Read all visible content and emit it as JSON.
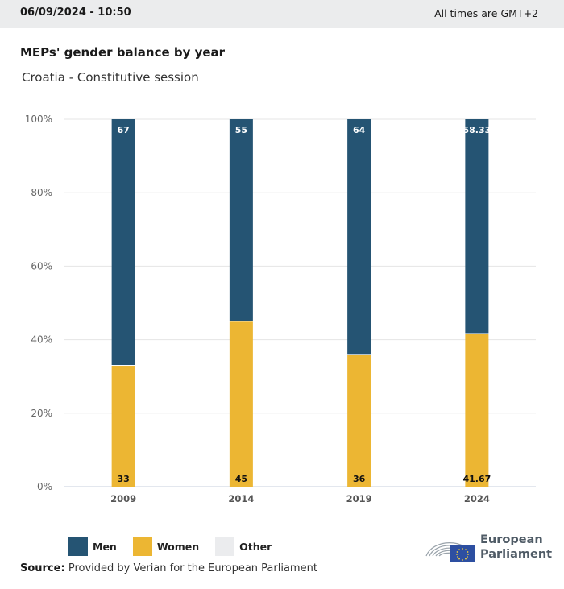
{
  "header": {
    "datetime": "06/09/2024 - 10:50",
    "timezone_note": "All times are GMT+2"
  },
  "title": "MEPs' gender balance by year",
  "subtitle": "Croatia - Constitutive session",
  "colors": {
    "men": "#255473",
    "women": "#ecb633",
    "other": "#ebecee",
    "grid": "#e4e4e4",
    "axis": "#c7cfdd"
  },
  "legend": [
    {
      "key": "men",
      "label": "Men",
      "color": "#255473"
    },
    {
      "key": "women",
      "label": "Women",
      "color": "#ecb633"
    },
    {
      "key": "other",
      "label": "Other",
      "color": "#ebecee"
    }
  ],
  "source": {
    "label": "Source:",
    "text": "Provided by Verian for the European Parliament"
  },
  "logo": {
    "line1": "European",
    "line2": "Parliament"
  },
  "chart_data": {
    "type": "bar",
    "stacked": true,
    "title": "MEPs' gender balance by year",
    "subtitle": "Croatia - Constitutive session",
    "categories": [
      "2009",
      "2014",
      "2019",
      "2024"
    ],
    "series": [
      {
        "name": "Women",
        "values": [
          33,
          45,
          36,
          41.67
        ],
        "labels": [
          "33",
          "45",
          "36",
          "41.67"
        ]
      },
      {
        "name": "Men",
        "values": [
          67,
          55,
          64,
          58.33
        ],
        "labels": [
          "67",
          "55",
          "64",
          "58.33"
        ]
      },
      {
        "name": "Other",
        "values": [
          0,
          0,
          0,
          0
        ]
      }
    ],
    "yticks": [
      "0%",
      "20%",
      "40%",
      "60%",
      "80%",
      "100%"
    ],
    "ylim": [
      0,
      100
    ],
    "xlabel": "",
    "ylabel": "",
    "grid": true,
    "legend_position": "bottom-left"
  }
}
